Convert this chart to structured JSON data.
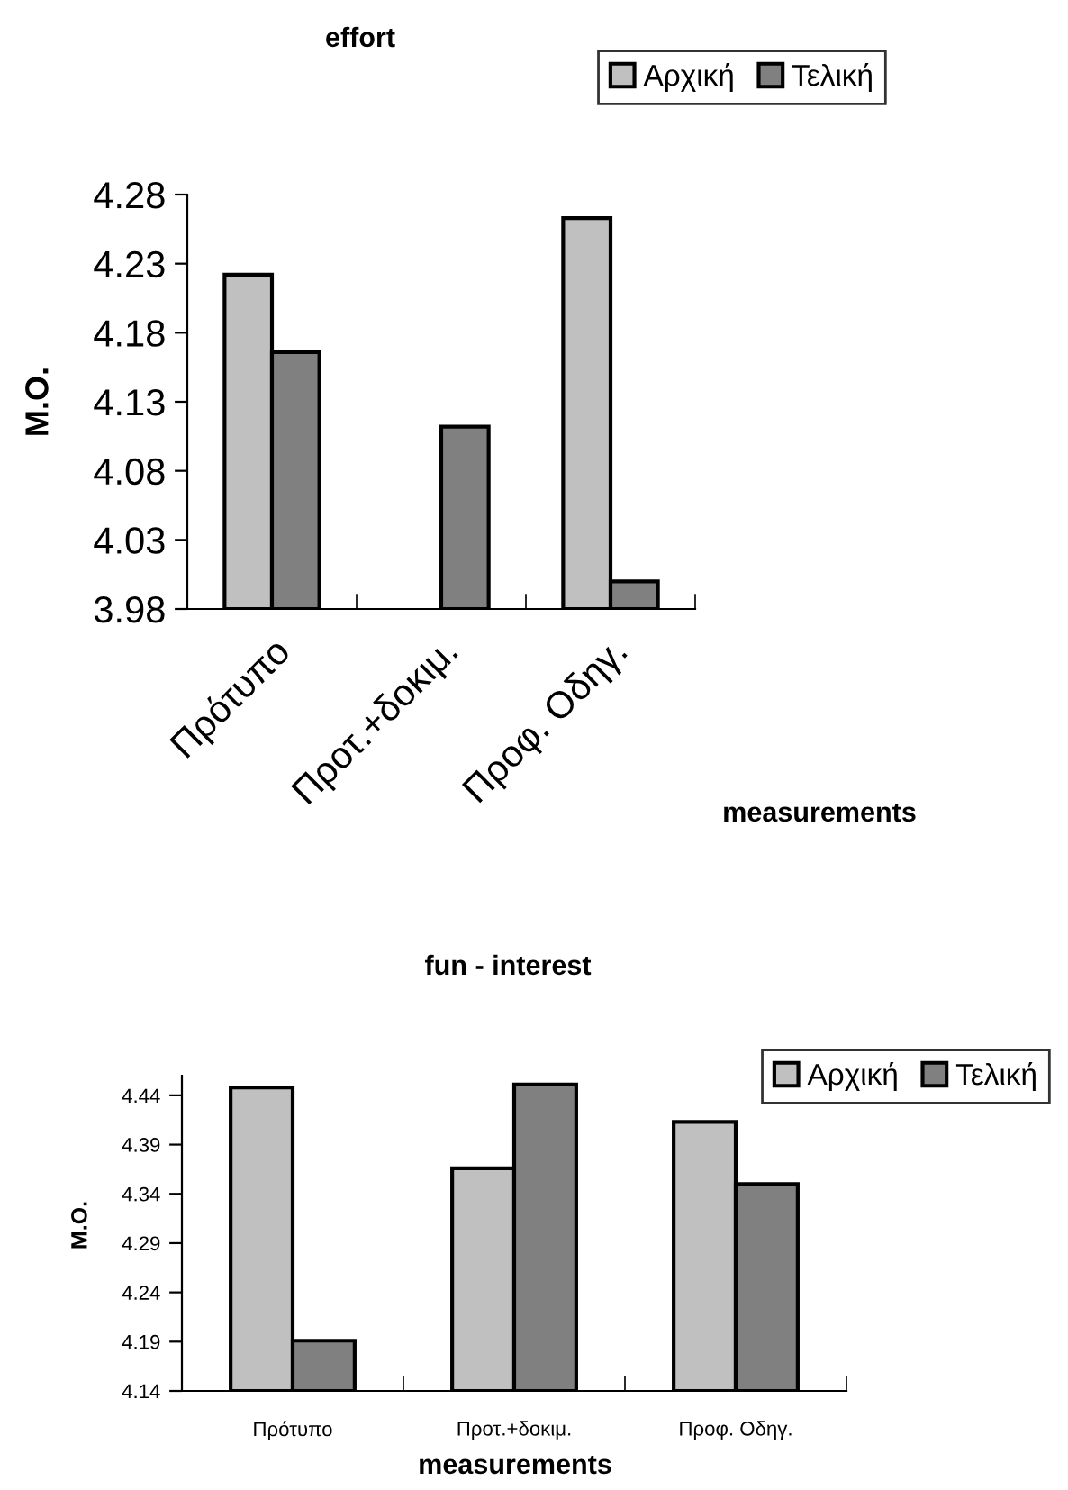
{
  "chart_data": [
    {
      "type": "bar",
      "title": "effort",
      "xlabel": "measurements",
      "ylabel": "Μ.Ο.",
      "categories": [
        "Πρότυπο",
        "Προτ.+δοκιμ.",
        "Προφ. Οδηγ."
      ],
      "series": [
        {
          "name": "Αρχική",
          "color": "#c0c0c0",
          "values": [
            4.222,
            null,
            4.263
          ]
        },
        {
          "name": "Τελική",
          "color": "#808080",
          "values": [
            4.166,
            4.112,
            4.0
          ]
        }
      ],
      "ylim": [
        3.98,
        4.28
      ],
      "yticks": [
        3.98,
        4.03,
        4.08,
        4.13,
        4.18,
        4.23,
        4.28
      ],
      "grid": false,
      "legend": "top right"
    },
    {
      "type": "bar",
      "title": "fun - interest",
      "xlabel": "measurements",
      "ylabel": "Μ.Ο.",
      "categories": [
        "Πρότυπο",
        "Προτ.+δοκιμ.",
        "Προφ. Οδηγ."
      ],
      "series": [
        {
          "name": "Αρχική",
          "color": "#c0c0c0",
          "values": [
            4.448,
            4.366,
            4.413
          ]
        },
        {
          "name": "Τελική",
          "color": "#808080",
          "values": [
            4.191,
            4.451,
            4.35
          ]
        }
      ],
      "ylim": [
        4.14,
        4.46
      ],
      "yticks": [
        4.14,
        4.19,
        4.24,
        4.29,
        4.34,
        4.39,
        4.44
      ],
      "grid": false,
      "legend": "right"
    }
  ]
}
